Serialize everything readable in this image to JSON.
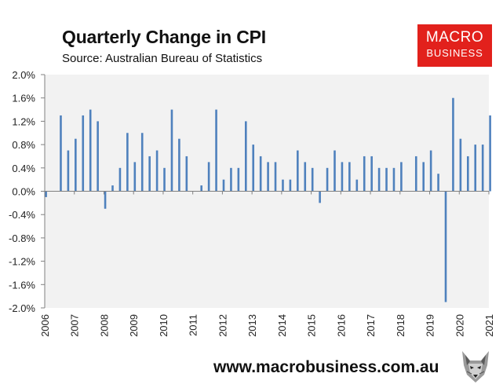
{
  "header": {
    "title": "Quarterly Change in CPI",
    "subtitle": "Source: Australian Bureau of Statistics"
  },
  "logo": {
    "line1": "MACRO",
    "line2": "BUSINESS",
    "color": "#e2211c"
  },
  "footer": {
    "url": "www.macrobusiness.com.au",
    "mascot_icon": "wolf-icon"
  },
  "colors": {
    "bar": "#4f81bd",
    "plot_bg": "#f2f2f2",
    "axis": "#808080"
  },
  "chart_data": {
    "type": "bar",
    "title": "Quarterly Change in CPI",
    "subtitle": "Source: Australian Bureau of Statistics",
    "xlabel": "",
    "ylabel": "",
    "ylim": [
      -2.0,
      2.0
    ],
    "yticks": [
      2.0,
      1.6,
      1.2,
      0.8,
      0.4,
      0.0,
      -0.4,
      -0.8,
      -1.2,
      -1.6,
      -2.0
    ],
    "ytick_labels": [
      "2.0%",
      "1.6%",
      "1.2%",
      "0.8%",
      "0.4%",
      "0.0%",
      "-0.4%",
      "-0.8%",
      "-1.2%",
      "-1.6%",
      "-2.0%"
    ],
    "xlim": [
      2006,
      2021
    ],
    "xticks": [
      2006,
      2007,
      2008,
      2009,
      2010,
      2011,
      2012,
      2013,
      2014,
      2015,
      2016,
      2017,
      2018,
      2019,
      2020,
      2021
    ],
    "xtick_labels": [
      "2006",
      "2007",
      "2008",
      "2009",
      "2010",
      "2011",
      "2012",
      "2013",
      "2014",
      "2015",
      "2016",
      "2017",
      "2018",
      "2019",
      "2020",
      "2021"
    ],
    "grid": false,
    "unit": "%",
    "x": [
      2006.0,
      2006.25,
      2006.5,
      2006.75,
      2007.0,
      2007.25,
      2007.5,
      2007.75,
      2008.0,
      2008.25,
      2008.5,
      2008.75,
      2009.0,
      2009.25,
      2009.5,
      2009.75,
      2010.0,
      2010.25,
      2010.5,
      2010.75,
      2011.0,
      2011.25,
      2011.5,
      2011.75,
      2012.0,
      2012.25,
      2012.5,
      2012.75,
      2013.0,
      2013.25,
      2013.5,
      2013.75,
      2014.0,
      2014.25,
      2014.5,
      2014.75,
      2015.0,
      2015.25,
      2015.5,
      2015.75,
      2016.0,
      2016.25,
      2016.5,
      2016.75,
      2017.0,
      2017.25,
      2017.5,
      2017.75,
      2018.0,
      2018.25,
      2018.5,
      2018.75,
      2019.0,
      2019.25,
      2019.5,
      2019.75,
      2020.0,
      2020.25,
      2020.5,
      2020.75,
      2021.0
    ],
    "values": [
      -0.1,
      0.0,
      1.3,
      0.7,
      0.9,
      1.3,
      1.4,
      1.2,
      -0.3,
      0.1,
      0.4,
      1.0,
      0.5,
      1.0,
      0.6,
      0.7,
      0.4,
      1.4,
      0.9,
      0.6,
      0.0,
      0.1,
      0.5,
      1.4,
      0.2,
      0.4,
      0.4,
      1.2,
      0.8,
      0.6,
      0.5,
      0.5,
      0.2,
      0.2,
      0.7,
      0.5,
      0.4,
      -0.2,
      0.4,
      0.7,
      0.5,
      0.5,
      0.2,
      0.6,
      0.6,
      0.4,
      0.4,
      0.4,
      0.5,
      0.0,
      0.6,
      0.5,
      0.7,
      0.3,
      -1.9,
      1.6,
      0.9,
      0.6,
      0.8,
      0.8,
      1.3
    ]
  }
}
